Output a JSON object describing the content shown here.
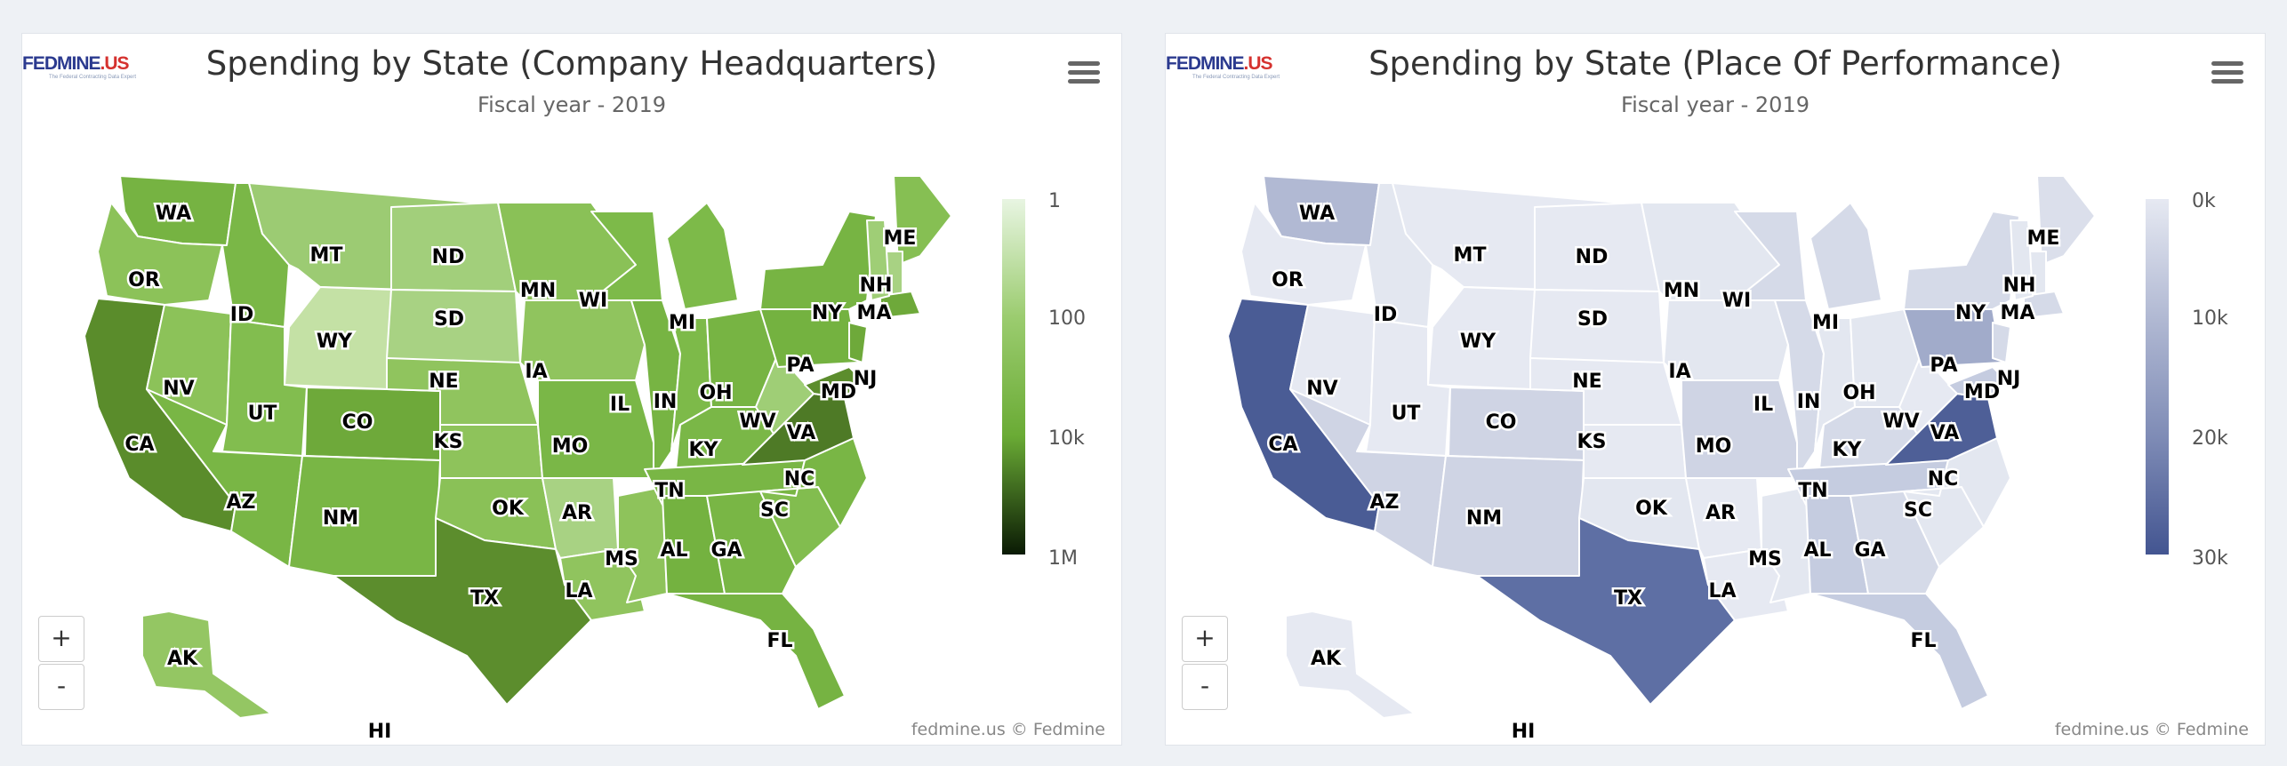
{
  "panels": [
    {
      "title": "Spending by State (Company Headquarters)",
      "subtitle": "Fiscal year - 2019",
      "logo": {
        "brand": "FEDMINE",
        "suffix": ".US",
        "tagline": "The Federal Contracting Data Expert"
      },
      "credit": "fedmine.us © Fedmine",
      "zoom_in": "+",
      "zoom_out": "-",
      "menu_icon": "hamburger-menu-icon",
      "legend": {
        "ticks": [
          "1",
          "100",
          "10k",
          "1M"
        ],
        "colors": [
          "#e8f5e2",
          "#9bcc6f",
          "#6aab35",
          "#0a1a04"
        ]
      },
      "states": {
        "WA": "#76b342",
        "OR": "#8cc259",
        "CA": "#5a8c2b",
        "NV": "#8cc259",
        "ID": "#7ab747",
        "MT": "#9ccb73",
        "WY": "#c4e1a5",
        "UT": "#82bd4f",
        "AZ": "#79b645",
        "CO": "#6ea93a",
        "NM": "#79b645",
        "ND": "#a2cf7b",
        "SD": "#a8d283",
        "NE": "#90c45e",
        "KS": "#8ec35b",
        "OK": "#8ac157",
        "TX": "#5c8d2d",
        "MN": "#8ac157",
        "IA": "#90c45e",
        "MO": "#7ab747",
        "AR": "#a8d283",
        "LA": "#90c45e",
        "WI": "#7dba49",
        "IL": "#77b443",
        "MS": "#8ec35b",
        "MI": "#7dba49",
        "IN": "#7dba49",
        "KY": "#7ab747",
        "TN": "#79b645",
        "AL": "#74b240",
        "OH": "#77b443",
        "GA": "#79b645",
        "FL": "#76b342",
        "SC": "#82bd4f",
        "NC": "#79b645",
        "VA": "#4e7a26",
        "WV": "#9fce76",
        "PA": "#74b240",
        "NY": "#77b443",
        "ME": "#86bf53",
        "NH": "#a8d283",
        "MA": "#6ea93a",
        "NJ": "#6ea93a",
        "MD": "#5c8d2d",
        "VT": "#9fce76",
        "AK": "#94c663",
        "HI": "#94c663"
      }
    },
    {
      "title": "Spending by State (Place Of Performance)",
      "subtitle": "Fiscal year - 2019",
      "logo": {
        "brand": "FEDMINE",
        "suffix": ".US",
        "tagline": "The Federal Contracting Data Expert"
      },
      "credit": "fedmine.us © Fedmine",
      "zoom_in": "+",
      "zoom_out": "-",
      "menu_icon": "hamburger-menu-icon",
      "legend": {
        "ticks": [
          "0k",
          "10k",
          "20k",
          "30k"
        ],
        "colors": [
          "#e6e9f2",
          "#b1b9d3",
          "#7f8cb6",
          "#435591"
        ]
      },
      "states": {
        "WA": "#b1b9d3",
        "OR": "#e6e9f2",
        "CA": "#4a5c95",
        "NV": "#e6e9f2",
        "ID": "#e3e7f0",
        "MT": "#e6e9f2",
        "WY": "#e6e9f2",
        "UT": "#e6e9f2",
        "AZ": "#cfd4e4",
        "CO": "#cfd4e4",
        "NM": "#cfd4e4",
        "ND": "#e6e9f2",
        "SD": "#e6e9f2",
        "NE": "#e6e9f2",
        "KS": "#e6e9f2",
        "OK": "#e3e7f0",
        "TX": "#5e6fa4",
        "MN": "#e3e7f0",
        "IA": "#e3e7f0",
        "MO": "#cfd4e4",
        "AR": "#e6e9f2",
        "LA": "#e6e9f2",
        "WI": "#d5dae8",
        "IL": "#d5dae8",
        "MS": "#e3e7f0",
        "MI": "#d5dae8",
        "IN": "#e3e7f0",
        "KY": "#d5dae8",
        "TN": "#c5cce0",
        "AL": "#c5cce0",
        "OH": "#e3e7f0",
        "GA": "#d5dae8",
        "FL": "#c5cce0",
        "SC": "#e3e7f0",
        "NC": "#e3e7f0",
        "VA": "#4e5f97",
        "WV": "#e6e9f2",
        "PA": "#a1abca",
        "NY": "#d5dae8",
        "ME": "#dbdfeb",
        "NH": "#e3e7f0",
        "MA": "#d5dae8",
        "NJ": "#d5dae8",
        "MD": "#c5cce0",
        "VT": "#e3e7f0",
        "AK": "#e6e9f2",
        "HI": "#e6e9f2"
      }
    }
  ]
}
